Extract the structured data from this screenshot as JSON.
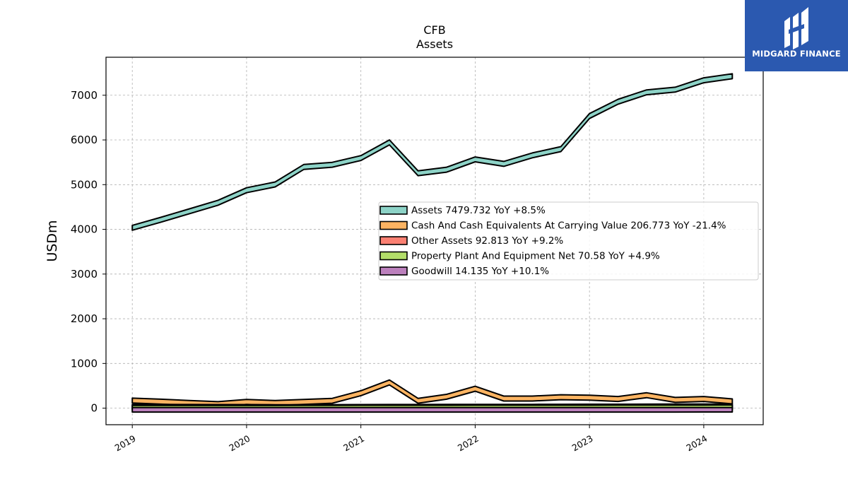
{
  "brand": {
    "name": "MIDGARD FINANCE",
    "color": "#2b59b0"
  },
  "chart_data": {
    "type": "area",
    "title": "CFB",
    "subtitle": "Assets",
    "ylabel": "USDm",
    "xlabel": "",
    "ylim": [
      -370,
      7850
    ],
    "xlim": [
      2018.77,
      2024.52
    ],
    "yticks": [
      0,
      1000,
      2000,
      3000,
      4000,
      5000,
      6000,
      7000
    ],
    "xticks": [
      "2019",
      "2020",
      "2021",
      "2022",
      "2023",
      "2024"
    ],
    "grid": true,
    "legend_position": "center-right",
    "x": [
      2019.0,
      2019.25,
      2019.5,
      2019.75,
      2020.0,
      2020.25,
      2020.5,
      2020.75,
      2021.0,
      2021.25,
      2021.5,
      2021.75,
      2022.0,
      2022.25,
      2022.5,
      2022.75,
      2023.0,
      2023.25,
      2023.5,
      2023.75,
      2024.0,
      2024.25
    ],
    "series": [
      {
        "name": "Assets",
        "value_label": "7479.732",
        "yoy": "YoY +8.5%",
        "color": "#8dd3c7",
        "values": [
          4090,
          4270,
          4460,
          4650,
          4930,
          5060,
          5450,
          5500,
          5650,
          6000,
          5310,
          5390,
          5620,
          5520,
          5710,
          5850,
          6590,
          6910,
          7120,
          7180,
          7390,
          7480
        ]
      },
      {
        "name": "Cash And Cash Equivalents At Carrying Value",
        "value_label": "206.773",
        "yoy": "YoY -21.4%",
        "color": "#fdb462",
        "values": [
          225,
          200,
          170,
          145,
          195,
          170,
          195,
          220,
          390,
          630,
          220,
          310,
          490,
          270,
          270,
          300,
          290,
          260,
          345,
          240,
          260,
          207
        ]
      },
      {
        "name": "Other Assets",
        "value_label": "92.813",
        "yoy": "YoY +9.2%",
        "color": "#fb8072",
        "values": [
          85,
          84,
          82,
          80,
          80,
          78,
          78,
          79,
          80,
          82,
          82,
          83,
          84,
          85,
          86,
          87,
          88,
          89,
          90,
          91,
          92,
          93
        ]
      },
      {
        "name": "Property Plant And Equipment Net",
        "value_label": "70.58",
        "yoy": "YoY +4.9%",
        "color": "#b3de69",
        "values": [
          60,
          60,
          61,
          61,
          62,
          62,
          63,
          63,
          64,
          64,
          65,
          65,
          66,
          66,
          67,
          67,
          67,
          68,
          69,
          69,
          70,
          71
        ]
      },
      {
        "name": "Goodwill",
        "value_label": "14.135",
        "yoy": "YoY +10.1%",
        "color": "#bc80bd",
        "values": [
          13,
          13,
          13,
          13,
          13,
          13,
          13,
          13,
          13,
          13,
          13,
          13,
          13,
          13,
          13,
          13,
          13,
          13,
          13.5,
          13.5,
          14,
          14.1
        ]
      }
    ]
  }
}
